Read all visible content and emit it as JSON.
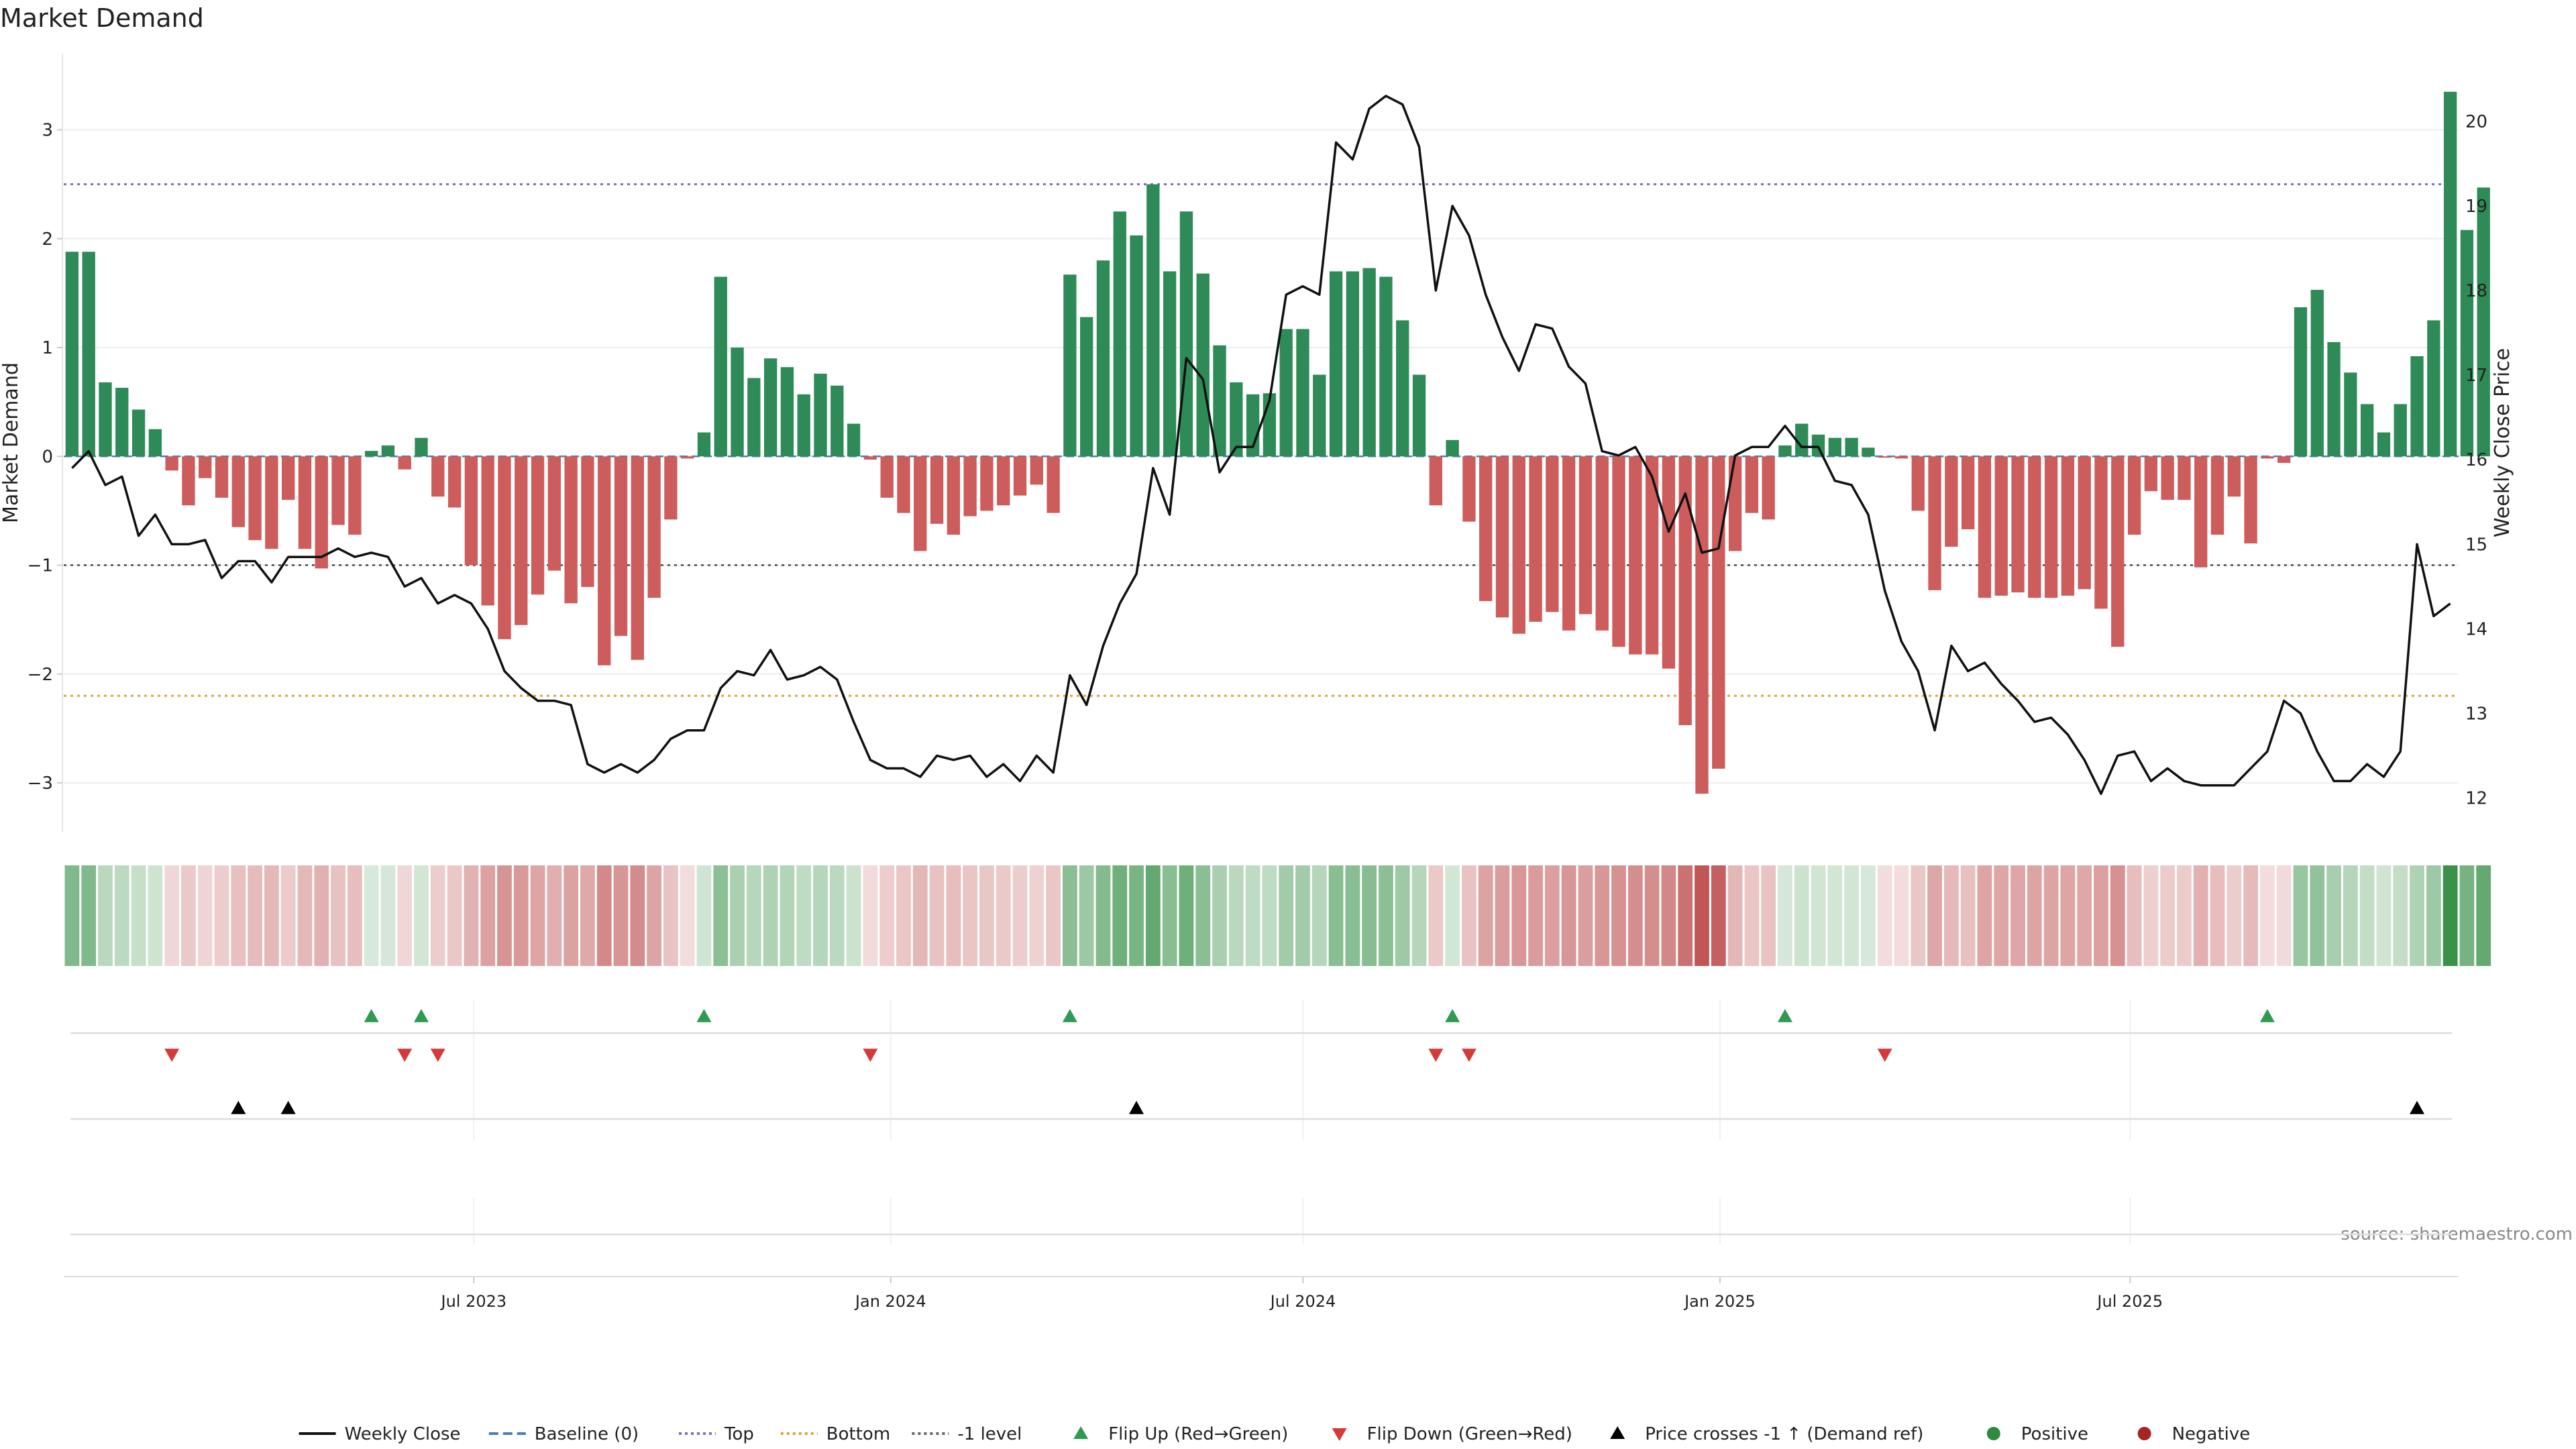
{
  "chart_data": {
    "type": "bar",
    "title": "Market Demand",
    "xlabel": "",
    "ylabel": "Market Demand",
    "y2label": "Weekly Close Price",
    "ylim": [
      -3.45,
      3.7
    ],
    "y2lim": [
      11.6,
      20.8
    ],
    "yticks": [
      -3,
      -2,
      -1,
      0,
      1,
      2,
      3
    ],
    "y2ticks": [
      12,
      13,
      14,
      15,
      16,
      17,
      18,
      19,
      20
    ],
    "x_start": "2023-01-01",
    "x_end": "2025-11-23",
    "xticks": [
      {
        "label": "Jul 2023",
        "date": "2023-07-01"
      },
      {
        "label": "Jan 2024",
        "date": "2024-01-01"
      },
      {
        "label": "Jul 2024",
        "date": "2024-07-01"
      },
      {
        "label": "Jan 2025",
        "date": "2025-01-01"
      },
      {
        "label": "Jul 2025",
        "date": "2025-07-01"
      }
    ],
    "levels": {
      "top": 2.5,
      "bottom": -2.2,
      "minus_one": -1,
      "baseline": 0
    },
    "weeks": 144,
    "demand": [
      1.88,
      1.88,
      0.68,
      0.63,
      0.43,
      0.25,
      -0.13,
      -0.45,
      -0.2,
      -0.38,
      -0.65,
      -0.77,
      -0.85,
      -0.4,
      -0.85,
      -1.03,
      -0.63,
      -0.72,
      0.05,
      0.1,
      -0.12,
      0.17,
      -0.37,
      -0.47,
      -1.0,
      -1.37,
      -1.68,
      -1.55,
      -1.27,
      -1.05,
      -1.35,
      -1.2,
      -1.92,
      -1.65,
      -1.87,
      -1.3,
      -0.58,
      -0.02,
      0.22,
      1.65,
      1.0,
      0.72,
      0.9,
      0.82,
      0.57,
      0.76,
      0.65,
      0.3,
      -0.03,
      -0.38,
      -0.52,
      -0.87,
      -0.62,
      -0.72,
      -0.55,
      -0.5,
      -0.45,
      -0.36,
      -0.26,
      -0.52,
      1.67,
      1.28,
      1.8,
      2.25,
      2.03,
      2.5,
      1.7,
      2.25,
      1.68,
      1.02,
      0.68,
      0.57,
      0.58,
      1.17,
      1.17,
      0.75,
      1.7,
      1.7,
      1.73,
      1.65,
      1.25,
      0.75,
      -0.45,
      0.15,
      -0.6,
      -1.33,
      -1.48,
      -1.63,
      -1.52,
      -1.43,
      -1.6,
      -1.45,
      -1.6,
      -1.75,
      -1.82,
      -1.82,
      -1.95,
      -2.47,
      -3.1,
      -2.87,
      -0.87,
      -0.52,
      -0.58,
      0.1,
      0.3,
      0.2,
      0.17,
      0.17,
      0.08,
      -0.01,
      -0.02,
      -0.5,
      -1.23,
      -0.83,
      -0.67,
      -1.3,
      -1.28,
      -1.25,
      -1.3,
      -1.3,
      -1.28,
      -1.22,
      -1.4,
      -1.75,
      -0.72,
      -0.32,
      -0.4,
      -0.4,
      -1.02,
      -0.72,
      -0.37,
      -0.8,
      -0.02,
      -0.06,
      1.37,
      1.53,
      1.05,
      0.77,
      0.48,
      0.22,
      0.48,
      0.92,
      1.25,
      3.35,
      2.08,
      2.47
    ],
    "series": [
      {
        "name": "Weekly Close",
        "axis": "right",
        "values": [
          15.9,
          16.1,
          15.7,
          15.8,
          15.1,
          15.35,
          15.0,
          15.0,
          15.05,
          14.6,
          14.8,
          14.8,
          14.55,
          14.85,
          14.85,
          14.85,
          14.95,
          14.85,
          14.9,
          14.85,
          14.5,
          14.6,
          14.3,
          14.4,
          14.3,
          14.0,
          13.5,
          13.3,
          13.15,
          13.15,
          13.1,
          12.4,
          12.3,
          12.4,
          12.3,
          12.45,
          12.7,
          12.8,
          12.8,
          13.3,
          13.5,
          13.45,
          13.75,
          13.4,
          13.45,
          13.55,
          13.4,
          12.9,
          12.45,
          12.35,
          12.35,
          12.25,
          12.5,
          12.45,
          12.5,
          12.25,
          12.4,
          12.2,
          12.5,
          12.3,
          13.45,
          13.1,
          13.8,
          14.3,
          14.65,
          15.9,
          15.35,
          17.2,
          16.95,
          15.85,
          16.15,
          16.15,
          16.7,
          17.95,
          18.05,
          17.95,
          19.75,
          19.55,
          20.15,
          20.3,
          20.2,
          19.7,
          18.0,
          19.0,
          18.65,
          17.95,
          17.45,
          17.05,
          17.6,
          17.55,
          17.1,
          16.9,
          16.1,
          16.05,
          16.15,
          15.8,
          15.15,
          15.6,
          14.9,
          14.95,
          16.05,
          16.15,
          16.15,
          16.4,
          16.15,
          16.15,
          15.75,
          15.7,
          15.35,
          14.45,
          13.85,
          13.5,
          12.8,
          13.8,
          13.5,
          13.6,
          13.35,
          13.15,
          12.9,
          12.95,
          12.75,
          12.45,
          12.05,
          12.5,
          12.55,
          12.2,
          12.35,
          12.2,
          12.15,
          12.15,
          12.15,
          12.35,
          12.55,
          13.15,
          13.0,
          12.55,
          12.2,
          12.2,
          12.4,
          12.25,
          12.55,
          15.0,
          14.15,
          14.3
        ]
      }
    ],
    "flip_up_weeks": [
      18,
      21,
      38,
      60,
      83,
      103,
      132
    ],
    "flip_down_weeks": [
      6,
      20,
      22,
      48,
      82,
      84,
      109
    ],
    "price_cross_weeks": [
      10,
      13,
      64,
      141
    ],
    "legend": {
      "placement": "bottom-center",
      "entries": [
        {
          "label": "Weekly Close",
          "kind": "line",
          "color": "#111111"
        },
        {
          "label": "Baseline (0)",
          "kind": "dash",
          "color": "#4a7fb5"
        },
        {
          "label": "Top",
          "kind": "dot",
          "color": "#7a6fc4"
        },
        {
          "label": "Bottom",
          "kind": "dot",
          "color": "#e0a43a"
        },
        {
          "label": "-1 level",
          "kind": "dot",
          "color": "#666666"
        },
        {
          "label": "Flip Up (Red→Green)",
          "kind": "tri-up",
          "color": "#2e9a52"
        },
        {
          "label": "Flip Down (Green→Red)",
          "kind": "tri-down",
          "color": "#d43a3a"
        },
        {
          "label": "Price crosses -1 ↑ (Demand ref)",
          "kind": "tri-up",
          "color": "#000000"
        },
        {
          "label": "Positive",
          "kind": "dot-marker",
          "color": "#2d8a3e"
        },
        {
          "label": "Negative",
          "kind": "dot-marker",
          "color": "#a82323"
        }
      ]
    },
    "source": "source: sharemaestro.com"
  },
  "colors": {
    "positive_bar": "#2e8b57",
    "negative_bar": "#cd5c5c",
    "price_line": "#111111",
    "grid": "#eeeeee"
  }
}
